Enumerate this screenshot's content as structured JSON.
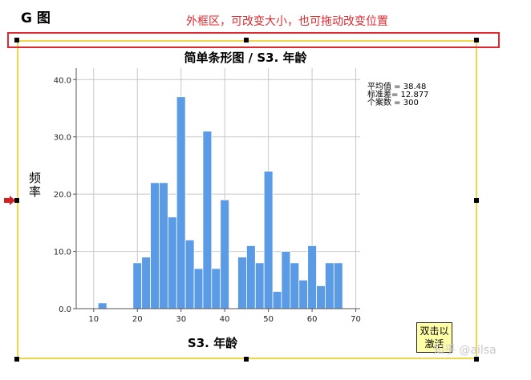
{
  "page": {
    "heading": "G 图"
  },
  "annotation": {
    "text": "外框区，可改变大小，也可拖动改变位置",
    "color": "#e0282e"
  },
  "frame": {
    "border_color": "#f3d54a"
  },
  "activate_button": {
    "label": "双击以\n激活"
  },
  "watermark": {
    "text": "知乎 @ailsa"
  },
  "stats": {
    "mean": "平均值 = 38.48",
    "std": "标准差= 12.877",
    "n": "个案数 = 300"
  },
  "chart_data": {
    "type": "bar",
    "title": "简单条形图 / S3. 年龄",
    "xlabel": "S3. 年龄",
    "ylabel": "频率",
    "xlim": [
      6,
      71
    ],
    "ylim": [
      0,
      42
    ],
    "x_ticks": [
      10,
      20,
      30,
      40,
      50,
      60,
      70
    ],
    "y_ticks": [
      0,
      10,
      20,
      30,
      40
    ],
    "y_tick_labels": [
      "0.0",
      "10.0",
      "20.0",
      "30.0",
      "40.0"
    ],
    "bar_color": "#5b9be5",
    "bar_width": 2,
    "grid": true,
    "x": [
      12,
      20,
      22,
      24,
      26,
      28,
      30,
      32,
      34,
      36,
      38,
      40,
      44,
      46,
      48,
      50,
      52,
      54,
      56,
      58,
      60,
      62,
      64,
      66
    ],
    "values": [
      1,
      8,
      9,
      22,
      22,
      16,
      37,
      12,
      7,
      31,
      7,
      19,
      9,
      11,
      8,
      24,
      3,
      10,
      8,
      5,
      11,
      4,
      8,
      8
    ]
  }
}
